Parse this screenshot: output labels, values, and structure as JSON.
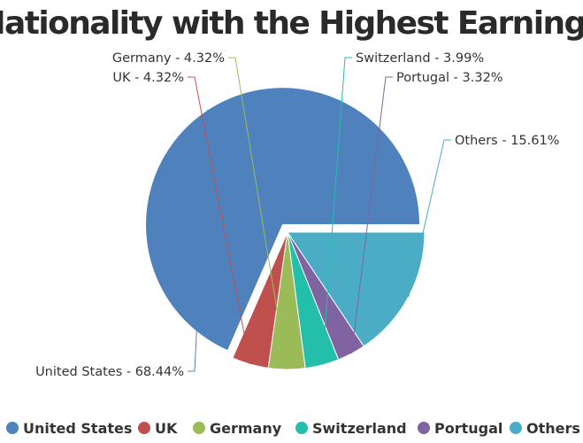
{
  "chart_data": {
    "type": "pie",
    "title": "Nationality with the Highest Earnings",
    "slices": [
      {
        "name": "United States",
        "value": 68.44,
        "label": "United States - 68.44%",
        "color": "#4f81bc",
        "exploded": true
      },
      {
        "name": "UK",
        "value": 4.32,
        "label": "UK - 4.32%",
        "color": "#c0504e"
      },
      {
        "name": "Germany",
        "value": 4.32,
        "label": "Germany - 4.32%",
        "color": "#9bbb58"
      },
      {
        "name": "Switzerland",
        "value": 3.99,
        "label": "Switzerland - 3.99%",
        "color": "#23bfaa"
      },
      {
        "name": "Portugal",
        "value": 3.32,
        "label": "Portugal - 3.32%",
        "color": "#8064a1"
      },
      {
        "name": "Others",
        "value": 15.61,
        "label": "Others - 15.61%",
        "color": "#4aacc5"
      }
    ],
    "legend": {
      "position": "bottom",
      "items": [
        "United States",
        "UK",
        "Germany",
        "Switzerland",
        "Portugal",
        "Others"
      ]
    }
  }
}
